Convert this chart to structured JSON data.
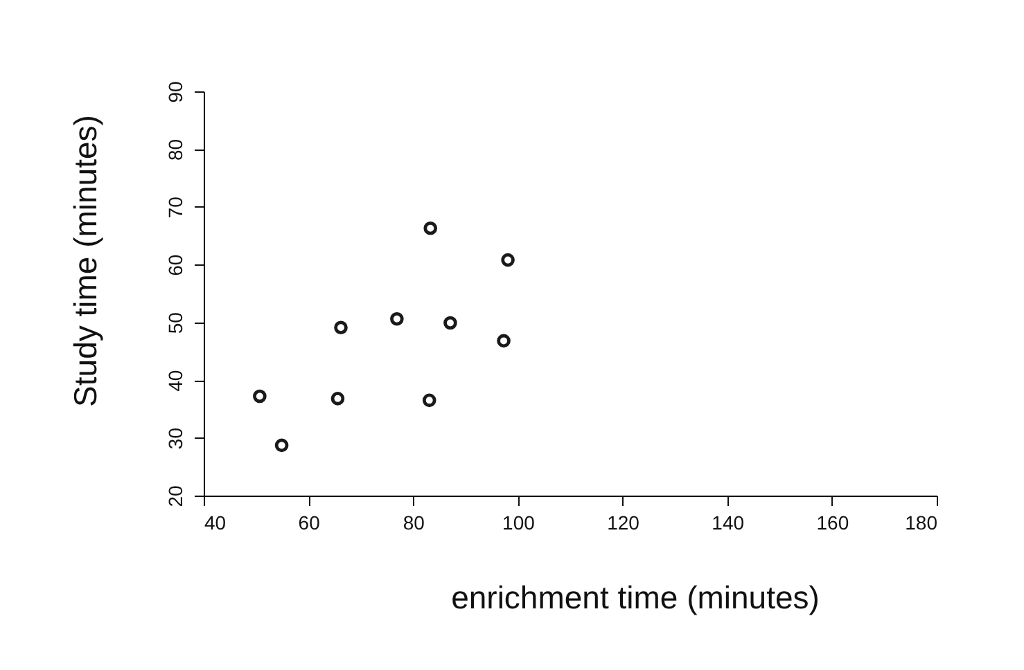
{
  "chart_data": {
    "type": "scatter",
    "xlabel": "enrichment time (minutes)",
    "ylabel": "Study time (minutes)",
    "x": [
      50.7,
      54.9,
      65.6,
      66.2,
      76.9,
      83.3,
      83.1,
      87.1,
      97.3,
      98.1
    ],
    "values": [
      37.2,
      28.7,
      36.8,
      49.1,
      50.6,
      66.3,
      36.5,
      49.9,
      46.8,
      60.8
    ],
    "color": "#1a1a1a",
    "xlim": [
      40,
      180
    ],
    "ylim": [
      20,
      90
    ],
    "xticks": [
      40,
      60,
      80,
      100,
      120,
      140,
      160,
      180
    ],
    "yticks": [
      20,
      30,
      40,
      50,
      60,
      70,
      80,
      90
    ],
    "grid": false,
    "marker": "circle"
  }
}
